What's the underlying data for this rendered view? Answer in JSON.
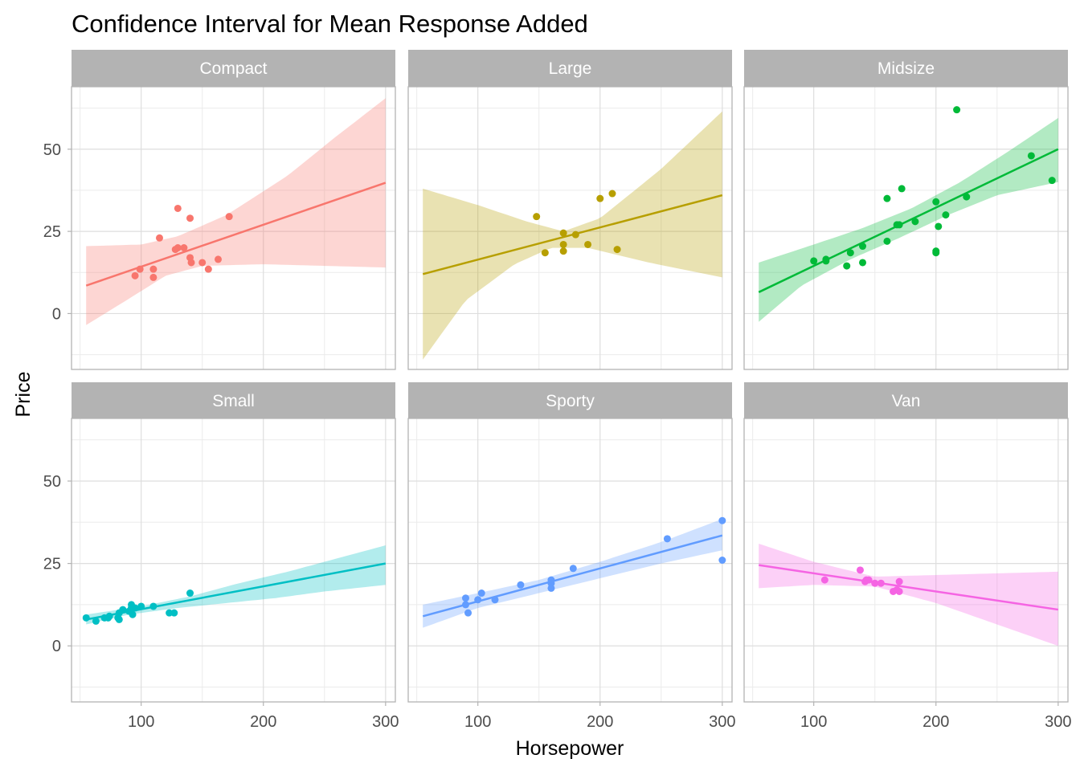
{
  "chart_data": {
    "type": "scatter",
    "title": "Confidence Interval for Mean Response Added",
    "xlabel": "Horsepower",
    "ylabel": "Price",
    "xlim": [
      43,
      308
    ],
    "ylim": [
      -17,
      69
    ],
    "x_ticks": [
      100,
      200,
      300
    ],
    "y_ticks": [
      0,
      25,
      50
    ],
    "x_minor_ticks": [
      50,
      150,
      250
    ],
    "y_minor_ticks": [
      -12.5,
      12.5,
      37.5,
      62.5
    ],
    "grid": true,
    "legend": "none",
    "facets": [
      {
        "name": "Compact",
        "color": "#F8766D",
        "fill": "#F8766D",
        "x_range": [
          55,
          300
        ],
        "line": [
          [
            55,
            8.5
          ],
          [
            300,
            39.8
          ]
        ],
        "ci_upper": [
          [
            55,
            20.5
          ],
          [
            100,
            21
          ],
          [
            130,
            23.5
          ],
          [
            170,
            30
          ],
          [
            220,
            42
          ],
          [
            260,
            54
          ],
          [
            300,
            65.5
          ]
        ],
        "ci_lower": [
          [
            55,
            -3.5
          ],
          [
            90,
            4.5
          ],
          [
            120,
            11.5
          ],
          [
            150,
            14.5
          ],
          [
            200,
            15
          ],
          [
            250,
            14.5
          ],
          [
            300,
            14
          ]
        ],
        "points": [
          [
            95,
            11.5
          ],
          [
            99,
            13.5
          ],
          [
            110,
            13.5
          ],
          [
            110,
            11
          ],
          [
            115,
            23
          ],
          [
            128,
            19.5
          ],
          [
            130,
            32
          ],
          [
            130,
            20
          ],
          [
            135,
            20
          ],
          [
            140,
            29
          ],
          [
            140,
            17
          ],
          [
            141,
            15.5
          ],
          [
            150,
            15.5
          ],
          [
            155,
            13.5
          ],
          [
            163,
            16.5
          ],
          [
            172,
            29.5
          ]
        ]
      },
      {
        "name": "Large",
        "color": "#B79F00",
        "fill": "#B79F00",
        "x_range": [
          55,
          300
        ],
        "line": [
          [
            55,
            12
          ],
          [
            300,
            36
          ]
        ],
        "ci_upper": [
          [
            55,
            38
          ],
          [
            100,
            33
          ],
          [
            140,
            28
          ],
          [
            170,
            25
          ],
          [
            200,
            29
          ],
          [
            250,
            44
          ],
          [
            300,
            61.5
          ]
        ],
        "ci_lower": [
          [
            55,
            -14
          ],
          [
            90,
            4
          ],
          [
            130,
            15
          ],
          [
            160,
            20
          ],
          [
            190,
            20
          ],
          [
            240,
            15.5
          ],
          [
            300,
            11
          ]
        ],
        "points": [
          [
            148,
            29.5
          ],
          [
            155,
            18.5
          ],
          [
            170,
            24.5
          ],
          [
            170,
            21
          ],
          [
            170,
            19
          ],
          [
            180,
            24
          ],
          [
            190,
            21
          ],
          [
            200,
            35
          ],
          [
            210,
            36.5
          ],
          [
            214,
            19.5
          ]
        ]
      },
      {
        "name": "Midsize",
        "color": "#00BA38",
        "fill": "#00BA38",
        "x_range": [
          55,
          300
        ],
        "line": [
          [
            55,
            6.5
          ],
          [
            300,
            50
          ]
        ],
        "ci_upper": [
          [
            55,
            15.5
          ],
          [
            100,
            21
          ],
          [
            140,
            26
          ],
          [
            180,
            32
          ],
          [
            220,
            40
          ],
          [
            260,
            49.5
          ],
          [
            300,
            59.5
          ]
        ],
        "ci_lower": [
          [
            55,
            -2.5
          ],
          [
            90,
            8.5
          ],
          [
            130,
            16.5
          ],
          [
            170,
            23
          ],
          [
            210,
            30
          ],
          [
            250,
            36
          ],
          [
            300,
            40
          ]
        ],
        "points": [
          [
            100,
            16
          ],
          [
            110,
            16
          ],
          [
            110,
            16.5
          ],
          [
            127,
            14.5
          ],
          [
            130,
            18.5
          ],
          [
            140,
            20.5
          ],
          [
            140,
            15.5
          ],
          [
            160,
            35
          ],
          [
            160,
            22
          ],
          [
            168,
            27
          ],
          [
            170,
            27
          ],
          [
            172,
            38
          ],
          [
            183,
            28
          ],
          [
            200,
            34
          ],
          [
            200,
            19
          ],
          [
            200,
            18.5
          ],
          [
            202,
            26.5
          ],
          [
            208,
            30
          ],
          [
            217,
            62
          ],
          [
            225,
            35.5
          ],
          [
            278,
            48
          ],
          [
            295,
            40.5
          ]
        ]
      },
      {
        "name": "Small",
        "color": "#00BFC4",
        "fill": "#00BFC4",
        "x_range": [
          55,
          300
        ],
        "line": [
          [
            55,
            8
          ],
          [
            300,
            25
          ]
        ],
        "ci_upper": [
          [
            55,
            9.5
          ],
          [
            100,
            12
          ],
          [
            140,
            15
          ],
          [
            180,
            19
          ],
          [
            220,
            22.5
          ],
          [
            260,
            26.5
          ],
          [
            300,
            30.5
          ]
        ],
        "ci_lower": [
          [
            55,
            6.5
          ],
          [
            90,
            9.5
          ],
          [
            130,
            11.5
          ],
          [
            170,
            13
          ],
          [
            210,
            14.5
          ],
          [
            250,
            16.5
          ],
          [
            300,
            18.5
          ]
        ],
        "points": [
          [
            55,
            8.5
          ],
          [
            63,
            7.5
          ],
          [
            70,
            8.5
          ],
          [
            73,
            8.5
          ],
          [
            74,
            9
          ],
          [
            81,
            8.5
          ],
          [
            82,
            8
          ],
          [
            82,
            10
          ],
          [
            85,
            11
          ],
          [
            90,
            10.5
          ],
          [
            92,
            11.5
          ],
          [
            92,
            12.5
          ],
          [
            93,
            9.5
          ],
          [
            95,
            11.5
          ],
          [
            100,
            12
          ],
          [
            110,
            12
          ],
          [
            123,
            10
          ],
          [
            127,
            10
          ],
          [
            140,
            16
          ]
        ]
      },
      {
        "name": "Sporty",
        "color": "#619CFF",
        "fill": "#619CFF",
        "x_range": [
          55,
          300
        ],
        "line": [
          [
            55,
            9
          ],
          [
            300,
            33.5
          ]
        ],
        "ci_upper": [
          [
            55,
            12.5
          ],
          [
            100,
            16
          ],
          [
            150,
            20
          ],
          [
            200,
            25.5
          ],
          [
            250,
            31.5
          ],
          [
            300,
            38.5
          ]
        ],
        "ci_lower": [
          [
            55,
            5.5
          ],
          [
            100,
            11.5
          ],
          [
            150,
            16
          ],
          [
            200,
            20.5
          ],
          [
            250,
            25
          ],
          [
            300,
            29
          ]
        ],
        "points": [
          [
            90,
            12.5
          ],
          [
            90,
            14.5
          ],
          [
            92,
            10
          ],
          [
            100,
            14
          ],
          [
            103,
            16
          ],
          [
            114,
            14
          ],
          [
            135,
            18.5
          ],
          [
            160,
            20
          ],
          [
            160,
            19
          ],
          [
            160,
            17.5
          ],
          [
            178,
            23.5
          ],
          [
            255,
            32.5
          ],
          [
            300,
            38
          ],
          [
            300,
            26
          ]
        ]
      },
      {
        "name": "Van",
        "color": "#F564E3",
        "fill": "#F564E3",
        "x_range": [
          55,
          300
        ],
        "line": [
          [
            55,
            24.5
          ],
          [
            300,
            11
          ]
        ],
        "ci_upper": [
          [
            55,
            31
          ],
          [
            100,
            25.5
          ],
          [
            150,
            21
          ],
          [
            200,
            21.5
          ],
          [
            250,
            22
          ],
          [
            300,
            22.5
          ]
        ],
        "ci_lower": [
          [
            55,
            17.5
          ],
          [
            100,
            18.5
          ],
          [
            150,
            18
          ],
          [
            200,
            13
          ],
          [
            250,
            6.5
          ],
          [
            300,
            0
          ]
        ],
        "points": [
          [
            109,
            20
          ],
          [
            138,
            23
          ],
          [
            142,
            19.5
          ],
          [
            143,
            20
          ],
          [
            145,
            20
          ],
          [
            150,
            19
          ],
          [
            155,
            19
          ],
          [
            165,
            16.5
          ],
          [
            168,
            17
          ],
          [
            170,
            19.5
          ],
          [
            170,
            16.5
          ]
        ]
      }
    ]
  }
}
